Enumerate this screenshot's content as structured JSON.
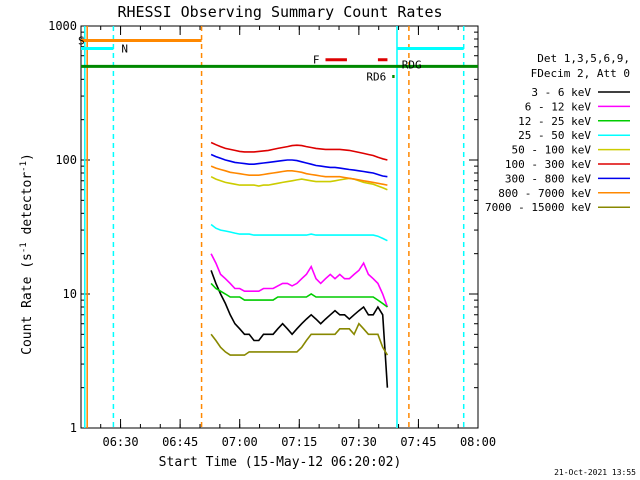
{
  "chart_data": {
    "type": "line",
    "title": "RHESSI Observing Summary Count Rates",
    "ylabel_parts": [
      "Count Rate (s",
      "-1",
      " detector",
      "-1",
      ")"
    ],
    "xlabel": "Start Time (15-May-12 06:20:02)",
    "yscale": "log",
    "ylim": [
      1,
      1000
    ],
    "y_ticks": [
      1,
      10,
      100,
      1000
    ],
    "y_tick_labels": [
      "1",
      "10",
      "100",
      "1000"
    ],
    "xlim": [
      6.334,
      8.0
    ],
    "x_ticks": [
      6.5,
      6.75,
      7.0,
      7.25,
      7.5,
      7.75,
      8.0
    ],
    "x_tick_labels": [
      "06:30",
      "06:45",
      "07:00",
      "07:15",
      "07:30",
      "07:45",
      "08:00"
    ],
    "legend": {
      "placement": "right",
      "header": [
        "Det 1,3,5,6,9,",
        "FDecim 2, Att 0"
      ]
    },
    "footer_date": "21-Oct-2021 13:55",
    "series": [
      {
        "name": "3 - 6 keV",
        "color": "#000000",
        "x": [
          6.88,
          6.9,
          6.92,
          6.94,
          6.96,
          6.98,
          7.0,
          7.02,
          7.04,
          7.06,
          7.08,
          7.1,
          7.12,
          7.14,
          7.16,
          7.18,
          7.2,
          7.22,
          7.24,
          7.26,
          7.28,
          7.3,
          7.32,
          7.34,
          7.36,
          7.38,
          7.4,
          7.42,
          7.44,
          7.46,
          7.48,
          7.5,
          7.52,
          7.54,
          7.56,
          7.58,
          7.6,
          7.62
        ],
        "y": [
          15,
          12,
          10,
          8.5,
          7,
          6,
          5.5,
          5,
          5,
          4.5,
          4.5,
          5,
          5,
          5,
          5.5,
          6,
          5.5,
          5,
          5.5,
          6,
          6.5,
          7,
          6.5,
          6,
          6.5,
          7,
          7.5,
          7,
          7,
          6.5,
          7,
          7.5,
          8,
          7,
          7,
          8,
          7,
          2
        ]
      },
      {
        "name": "6 - 12 keV",
        "color": "#ff00ff",
        "x": [
          6.88,
          6.9,
          6.92,
          6.94,
          6.96,
          6.98,
          7.0,
          7.02,
          7.04,
          7.06,
          7.08,
          7.1,
          7.12,
          7.14,
          7.16,
          7.18,
          7.2,
          7.22,
          7.24,
          7.26,
          7.28,
          7.3,
          7.32,
          7.34,
          7.36,
          7.38,
          7.4,
          7.42,
          7.44,
          7.46,
          7.48,
          7.5,
          7.52,
          7.54,
          7.56,
          7.58,
          7.6,
          7.62
        ],
        "y": [
          20,
          17,
          14,
          13,
          12,
          11,
          11,
          10.5,
          10.5,
          10.5,
          10.5,
          11,
          11,
          11,
          11.5,
          12,
          12,
          11.5,
          12,
          13,
          14,
          16,
          13,
          12,
          13,
          14,
          13,
          14,
          13,
          13,
          14,
          15,
          17,
          14,
          13,
          12,
          10,
          8
        ]
      },
      {
        "name": "12 - 25 keV",
        "color": "#00cc00",
        "x": [
          6.88,
          6.9,
          6.92,
          6.94,
          6.96,
          6.98,
          7.0,
          7.02,
          7.04,
          7.06,
          7.08,
          7.1,
          7.12,
          7.14,
          7.16,
          7.18,
          7.2,
          7.22,
          7.24,
          7.26,
          7.28,
          7.3,
          7.32,
          7.34,
          7.36,
          7.38,
          7.4,
          7.42,
          7.44,
          7.46,
          7.48,
          7.5,
          7.52,
          7.54,
          7.56,
          7.58,
          7.6,
          7.62
        ],
        "y": [
          12,
          11,
          10.5,
          10,
          9.5,
          9.5,
          9.5,
          9,
          9,
          9,
          9,
          9,
          9,
          9,
          9.5,
          9.5,
          9.5,
          9.5,
          9.5,
          9.5,
          9.5,
          10,
          9.5,
          9.5,
          9.5,
          9.5,
          9.5,
          9.5,
          9.5,
          9.5,
          9.5,
          9.5,
          9.5,
          9.5,
          9.5,
          9,
          8.5,
          8
        ]
      },
      {
        "name": "25 - 50 keV",
        "color": "#00ffff",
        "x": [
          6.88,
          6.9,
          6.92,
          6.94,
          6.96,
          6.98,
          7.0,
          7.02,
          7.04,
          7.06,
          7.08,
          7.1,
          7.12,
          7.14,
          7.16,
          7.18,
          7.2,
          7.22,
          7.24,
          7.26,
          7.28,
          7.3,
          7.32,
          7.34,
          7.36,
          7.38,
          7.4,
          7.42,
          7.44,
          7.46,
          7.48,
          7.5,
          7.52,
          7.54,
          7.56,
          7.58,
          7.6,
          7.62
        ],
        "y": [
          33,
          31,
          30,
          29.5,
          29,
          28.5,
          28,
          28,
          28,
          27.5,
          27.5,
          27.5,
          27.5,
          27.5,
          27.5,
          27.5,
          27.5,
          27.5,
          27.5,
          27.5,
          27.5,
          28,
          27.5,
          27.5,
          27.5,
          27.5,
          27.5,
          27.5,
          27.5,
          27.5,
          27.5,
          27.5,
          27.5,
          27.5,
          27.5,
          27,
          26,
          25
        ]
      },
      {
        "name": "50 - 100 keV",
        "color": "#cccc00",
        "x": [
          6.88,
          6.9,
          6.92,
          6.94,
          6.96,
          6.98,
          7.0,
          7.02,
          7.04,
          7.06,
          7.08,
          7.1,
          7.12,
          7.14,
          7.16,
          7.18,
          7.2,
          7.22,
          7.24,
          7.26,
          7.28,
          7.3,
          7.32,
          7.34,
          7.36,
          7.38,
          7.4,
          7.42,
          7.44,
          7.46,
          7.48,
          7.5,
          7.52,
          7.54,
          7.56,
          7.58,
          7.6,
          7.62
        ],
        "y": [
          75,
          72,
          70,
          68,
          67,
          66,
          65,
          65,
          65,
          65,
          64,
          65,
          65,
          66,
          67,
          68,
          69,
          70,
          71,
          72,
          71,
          70,
          69,
          69,
          69,
          69,
          70,
          71,
          72,
          73,
          72,
          70,
          68,
          67,
          66,
          64,
          62,
          60
        ]
      },
      {
        "name": "100 - 300 keV",
        "color": "#dd0000",
        "x": [
          6.88,
          6.9,
          6.92,
          6.94,
          6.96,
          6.98,
          7.0,
          7.02,
          7.04,
          7.06,
          7.08,
          7.1,
          7.12,
          7.14,
          7.16,
          7.18,
          7.2,
          7.22,
          7.24,
          7.26,
          7.28,
          7.3,
          7.32,
          7.34,
          7.36,
          7.38,
          7.4,
          7.42,
          7.44,
          7.46,
          7.48,
          7.5,
          7.52,
          7.54,
          7.56,
          7.58,
          7.6,
          7.62
        ],
        "y": [
          135,
          130,
          126,
          122,
          120,
          118,
          116,
          115,
          115,
          115,
          116,
          117,
          118,
          120,
          122,
          124,
          126,
          128,
          129,
          128,
          126,
          124,
          122,
          121,
          120,
          120,
          120,
          120,
          119,
          118,
          116,
          114,
          112,
          110,
          108,
          105,
          102,
          100
        ]
      },
      {
        "name": "300 - 800 keV",
        "color": "#0000ee",
        "x": [
          6.88,
          6.9,
          6.92,
          6.94,
          6.96,
          6.98,
          7.0,
          7.02,
          7.04,
          7.06,
          7.08,
          7.1,
          7.12,
          7.14,
          7.16,
          7.18,
          7.2,
          7.22,
          7.24,
          7.26,
          7.28,
          7.3,
          7.32,
          7.34,
          7.36,
          7.38,
          7.4,
          7.42,
          7.44,
          7.46,
          7.48,
          7.5,
          7.52,
          7.54,
          7.56,
          7.58,
          7.6,
          7.62
        ],
        "y": [
          110,
          106,
          103,
          100,
          98,
          96,
          95,
          94,
          93,
          93,
          94,
          95,
          96,
          97,
          98,
          99,
          100,
          100,
          99,
          97,
          95,
          93,
          91,
          90,
          89,
          88,
          88,
          87,
          86,
          85,
          84,
          83,
          82,
          81,
          80,
          78,
          76,
          75
        ]
      },
      {
        "name": "800 - 7000 keV",
        "color": "#ff8800",
        "x": [
          6.88,
          6.9,
          6.92,
          6.94,
          6.96,
          6.98,
          7.0,
          7.02,
          7.04,
          7.06,
          7.08,
          7.1,
          7.12,
          7.14,
          7.16,
          7.18,
          7.2,
          7.22,
          7.24,
          7.26,
          7.28,
          7.3,
          7.32,
          7.34,
          7.36,
          7.38,
          7.4,
          7.42,
          7.44,
          7.46,
          7.48,
          7.5,
          7.52,
          7.54,
          7.56,
          7.58,
          7.6,
          7.62
        ],
        "y": [
          90,
          87,
          85,
          83,
          81,
          80,
          79,
          78,
          77,
          77,
          77,
          78,
          79,
          80,
          81,
          82,
          83,
          83,
          82,
          81,
          79,
          78,
          77,
          76,
          75,
          75,
          75,
          75,
          74,
          73,
          72,
          71,
          70,
          69,
          68,
          67,
          66,
          65
        ]
      },
      {
        "name": "7000 - 15000 keV",
        "color": "#888800",
        "x": [
          6.88,
          6.9,
          6.92,
          6.94,
          6.96,
          6.98,
          7.0,
          7.02,
          7.04,
          7.06,
          7.08,
          7.1,
          7.12,
          7.14,
          7.16,
          7.18,
          7.2,
          7.22,
          7.24,
          7.26,
          7.28,
          7.3,
          7.32,
          7.34,
          7.36,
          7.38,
          7.4,
          7.42,
          7.44,
          7.46,
          7.48,
          7.5,
          7.52,
          7.54,
          7.56,
          7.58,
          7.6,
          7.62
        ],
        "y": [
          5,
          4.5,
          4,
          3.7,
          3.5,
          3.5,
          3.5,
          3.5,
          3.7,
          3.7,
          3.7,
          3.7,
          3.7,
          3.7,
          3.7,
          3.7,
          3.7,
          3.7,
          3.7,
          4,
          4.5,
          5,
          5,
          5,
          5,
          5,
          5,
          5.5,
          5.5,
          5.5,
          5,
          6,
          5.5,
          5,
          5,
          5,
          4,
          3.5
        ]
      }
    ],
    "flags": [
      {
        "label": "S",
        "color": "#ff8800",
        "x": [
          6.334,
          6.84
        ],
        "y": 780
      },
      {
        "label": "N",
        "color": "#00ffff",
        "x": [
          6.334,
          6.47
        ],
        "y": 680
      },
      {
        "label": "",
        "color": "#00ffff",
        "x": [
          7.66,
          7.94
        ],
        "y": 680
      },
      {
        "label": "F",
        "color": "#dd0000",
        "x": [
          7.36,
          7.45
        ],
        "y": 560
      },
      {
        "label": "",
        "color": "#dd0000",
        "x": [
          7.58,
          7.62
        ],
        "y": 560
      },
      {
        "label": "RD6",
        "color": "#008800",
        "x": [
          7.64,
          7.65
        ],
        "y": 420
      },
      {
        "label": "RDG",
        "color": "#008800",
        "x": [
          6.334,
          8.0
        ],
        "y": 500
      }
    ],
    "vlines": [
      {
        "x": 6.35,
        "color": "#00ffff",
        "style": "solid"
      },
      {
        "x": 6.36,
        "color": "#ff8800",
        "style": "solid"
      },
      {
        "x": 6.47,
        "color": "#00ffff",
        "style": "dashed"
      },
      {
        "x": 6.84,
        "color": "#ff8800",
        "style": "dashed"
      },
      {
        "x": 7.66,
        "color": "#00ffff",
        "style": "solid"
      },
      {
        "x": 7.71,
        "color": "#ff8800",
        "style": "dashed"
      },
      {
        "x": 7.94,
        "color": "#00ffff",
        "style": "dashed"
      }
    ]
  }
}
